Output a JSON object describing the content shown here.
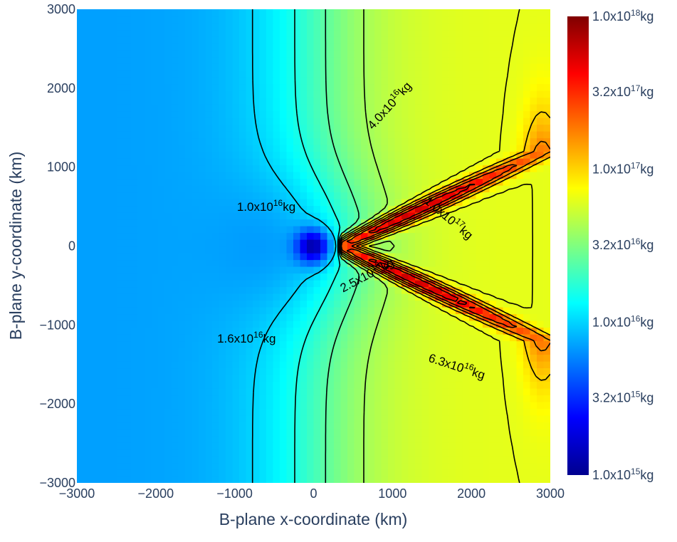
{
  "chart_data": {
    "type": "heatmap",
    "title": "",
    "xlabel": "B-plane x-coordinate (km)",
    "ylabel": "B-plane y-coordinate (km)",
    "xlim": [
      -3000,
      3000
    ],
    "ylim": [
      -3000,
      3000
    ],
    "x_ticks": [
      "−3000",
      "−2000",
      "−1000",
      "0",
      "1000",
      "2000",
      "3000"
    ],
    "y_ticks": [
      "−3000",
      "−2000",
      "−1000",
      "0",
      "1000",
      "2000",
      "3000"
    ],
    "x_tick_values": [
      -3000,
      -2000,
      -1000,
      0,
      1000,
      2000,
      3000
    ],
    "y_tick_values": [
      -3000,
      -2000,
      -1000,
      0,
      1000,
      2000,
      3000
    ],
    "colorscale": "jet",
    "colorbar": {
      "scale": "log",
      "range_kg": [
        1000000000000000.0,
        1e+18
      ],
      "tick_values_kg": [
        1000000000000000.0,
        3200000000000000.0,
        1e+16,
        3.2e+16,
        1e+17,
        3.2e+17,
        1e+18
      ],
      "tick_labels": [
        {
          "mantissa": "1.0x10",
          "exp": "15",
          "unit": "kg"
        },
        {
          "mantissa": "3.2x10",
          "exp": "15",
          "unit": "kg"
        },
        {
          "mantissa": "1.0x10",
          "exp": "16",
          "unit": "kg"
        },
        {
          "mantissa": "3.2x10",
          "exp": "16",
          "unit": "kg"
        },
        {
          "mantissa": "1.0x10",
          "exp": "17",
          "unit": "kg"
        },
        {
          "mantissa": "3.2x10",
          "exp": "17",
          "unit": "kg"
        },
        {
          "mantissa": "1.0x10",
          "exp": "18",
          "unit": "kg"
        }
      ]
    },
    "contour_labels": [
      {
        "mantissa": "4.0x10",
        "exp": "16",
        "unit": "kg",
        "x": 1000,
        "y": 1800,
        "angle": -48
      },
      {
        "mantissa": "1.0x10",
        "exp": "16",
        "unit": "kg",
        "x": -600,
        "y": 500,
        "angle": 0
      },
      {
        "mantissa": "1.0x10",
        "exp": "17",
        "unit": "kg",
        "x": 1680,
        "y": 370,
        "angle": 40
      },
      {
        "mantissa": "2.5x10",
        "exp": "16",
        "unit": "kg",
        "x": 700,
        "y": -360,
        "angle": -28
      },
      {
        "mantissa": "1.6x10",
        "exp": "16",
        "unit": "kg",
        "x": -850,
        "y": -1170,
        "angle": 0
      },
      {
        "mantissa": "6.3x10",
        "exp": "16",
        "unit": "kg",
        "x": 1800,
        "y": -1520,
        "angle": 18
      }
    ],
    "contour_levels_kg": [
      1e+16,
      1.6e+16,
      2.5e+16,
      4e+16,
      6.3e+16,
      1e+17,
      1.6e+17,
      2.5e+17,
      4e+17
    ],
    "field_description_kg": {
      "background": 2.1e+16,
      "minimum_at": [
        0,
        0
      ],
      "minimum": 1000000000000000.0,
      "maximum_ridge_x_at_y0": 2900,
      "maximum": 7e+17
    },
    "grid": false,
    "legend": "colorbar-right"
  }
}
